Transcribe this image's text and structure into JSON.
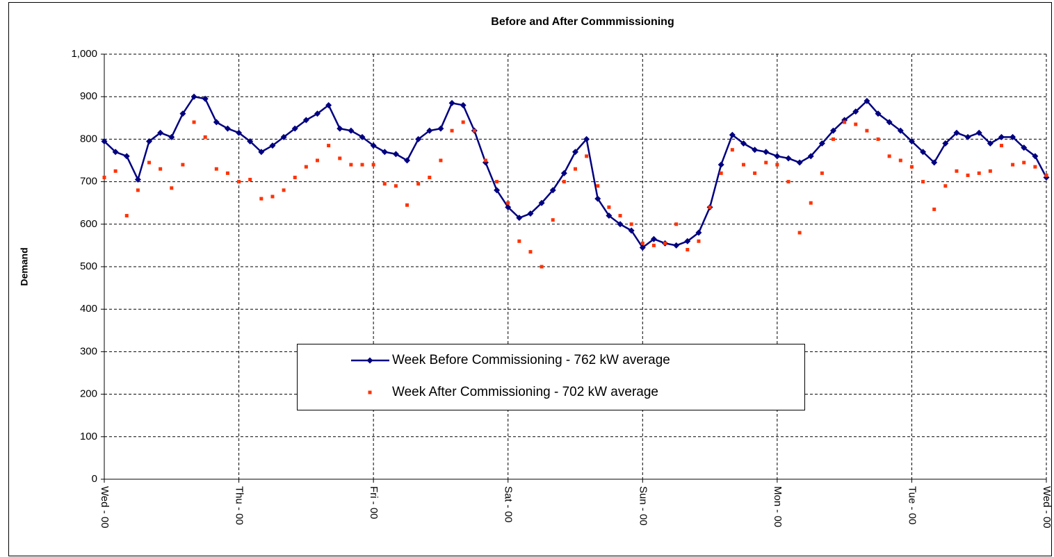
{
  "chart_data": {
    "type": "line",
    "title": "Before and After Commmissioning",
    "y_label": "Demand",
    "x": [
      0,
      2,
      4,
      6,
      8,
      10,
      12,
      14,
      16,
      18,
      20,
      22,
      24,
      26,
      28,
      30,
      32,
      34,
      36,
      38,
      40,
      42,
      44,
      46,
      48,
      50,
      52,
      54,
      56,
      58,
      60,
      62,
      64,
      66,
      68,
      70,
      72,
      74,
      76,
      78,
      80,
      82,
      84,
      86,
      88,
      90,
      92,
      94,
      96,
      98,
      100,
      102,
      104,
      106,
      108,
      110,
      112,
      114,
      116,
      118,
      120,
      122,
      124,
      126,
      128,
      130,
      132,
      134,
      136,
      138,
      140,
      142,
      144,
      146,
      148,
      150,
      152,
      154,
      156,
      158,
      160,
      162,
      164,
      166,
      168
    ],
    "xlim": [
      0,
      168
    ],
    "xticks": [
      {
        "value": 0,
        "label": "Wed - 00"
      },
      {
        "value": 24,
        "label": "Thu - 00"
      },
      {
        "value": 48,
        "label": "Fri - 00"
      },
      {
        "value": 72,
        "label": "Sat - 00"
      },
      {
        "value": 96,
        "label": "Sun - 00"
      },
      {
        "value": 120,
        "label": "Mon - 00"
      },
      {
        "value": 144,
        "label": "Tue - 00"
      },
      {
        "value": 168,
        "label": "Wed - 00"
      }
    ],
    "ylim": [
      0,
      1000
    ],
    "yticks": [
      0,
      100,
      200,
      300,
      400,
      500,
      600,
      700,
      800,
      900,
      {
        "value": 1000,
        "label": "1,000"
      }
    ],
    "grid": true,
    "series": [
      {
        "name": "Week Before Commissioning - 762 kW average",
        "color": "#000080",
        "style": "line-diamond",
        "values": [
          795,
          770,
          760,
          705,
          795,
          815,
          805,
          860,
          900,
          895,
          840,
          825,
          815,
          795,
          770,
          785,
          805,
          825,
          845,
          860,
          880,
          825,
          820,
          805,
          785,
          770,
          765,
          750,
          800,
          820,
          825,
          885,
          880,
          820,
          745,
          680,
          640,
          615,
          625,
          650,
          680,
          720,
          770,
          800,
          660,
          620,
          600,
          585,
          545,
          565,
          555,
          550,
          560,
          580,
          640,
          740,
          810,
          790,
          775,
          770,
          760,
          755,
          745,
          760,
          790,
          820,
          845,
          865,
          890,
          860,
          840,
          820,
          795,
          770,
          745,
          790,
          815,
          805,
          815,
          790,
          805,
          805,
          780,
          760,
          710
        ]
      },
      {
        "name": "Week After Commissioning - 702 kW average",
        "color": "#ff3300",
        "style": "square-markers",
        "values": [
          710,
          725,
          620,
          680,
          745,
          730,
          685,
          740,
          840,
          805,
          730,
          720,
          700,
          705,
          660,
          665,
          680,
          710,
          735,
          750,
          785,
          755,
          740,
          740,
          740,
          695,
          690,
          645,
          695,
          710,
          750,
          820,
          840,
          820,
          750,
          700,
          650,
          560,
          535,
          500,
          610,
          700,
          730,
          760,
          690,
          640,
          620,
          600,
          555,
          550,
          555,
          600,
          540,
          560,
          640,
          720,
          775,
          740,
          720,
          745,
          740,
          700,
          580,
          650,
          720,
          800,
          840,
          835,
          820,
          800,
          760,
          750,
          735,
          700,
          635,
          690,
          725,
          715,
          720,
          725,
          785,
          740,
          745,
          735,
          715
        ]
      }
    ],
    "legend": "center"
  }
}
